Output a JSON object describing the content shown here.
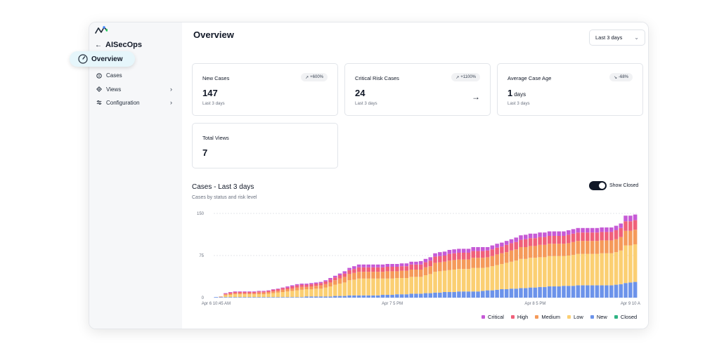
{
  "app": {
    "name": "AISecOps"
  },
  "sidebar": {
    "back_label": "AISecOps",
    "items": [
      {
        "label": "Overview",
        "icon": "gauge-icon",
        "active": true
      },
      {
        "label": "Cases",
        "icon": "info-icon"
      },
      {
        "label": "Views",
        "icon": "views-icon",
        "expandable": true
      },
      {
        "label": "Configuration",
        "icon": "sliders-icon",
        "expandable": true
      }
    ]
  },
  "header": {
    "title": "Overview",
    "range_select": {
      "value": "Last 3 days"
    }
  },
  "cards": [
    {
      "title": "New Cases",
      "badge": "+600%",
      "badge_icon": "trend-up-icon",
      "value": "147",
      "unit": "",
      "sub": "Last 3 days"
    },
    {
      "title": "Critical Risk Cases",
      "badge": "+1100%",
      "badge_icon": "trend-up-icon",
      "value": "24",
      "unit": "",
      "sub": "Last 3 days",
      "has_arrow": true
    },
    {
      "title": "Average Case Age",
      "badge": "-68%",
      "badge_icon": "trend-down-icon",
      "value": "1",
      "unit": "days",
      "sub": "Last 3 days"
    },
    {
      "title": "Total Views",
      "value": "7",
      "unit": "",
      "sub": ""
    }
  ],
  "chart_section": {
    "title": "Cases - Last 3 days",
    "subtitle": "Cases by status and risk level",
    "toggle_label": "Show Closed",
    "toggle_on": true
  },
  "colors": {
    "Critical": "#c65ad6",
    "High": "#f0607a",
    "Medium": "#f59a5a",
    "Low": "#fbcf72",
    "New": "#6c93ea",
    "Closed": "#2fb383",
    "accent": "#e6f6fb"
  },
  "chart_data": {
    "type": "bar",
    "stacked": true,
    "title": "Cases - Last 3 days",
    "subtitle": "Cases by status and risk level",
    "y_ticks": [
      0,
      75,
      150
    ],
    "ylim": [
      0,
      150
    ],
    "x_tick_labels": [
      "Apr 6 10:45 AM",
      "Apr 7 5 PM",
      "Apr 8 5 PM",
      "Apr 9 10 A"
    ],
    "x_tick_index": [
      0,
      37,
      67,
      87
    ],
    "legend": [
      "Critical",
      "High",
      "Medium",
      "Low",
      "New",
      "Closed"
    ],
    "totals": [
      1,
      2,
      8,
      10,
      11,
      11,
      11,
      11,
      11,
      12,
      12,
      13,
      15,
      16,
      18,
      20,
      22,
      24,
      25,
      25,
      26,
      27,
      28,
      31,
      35,
      39,
      43,
      47,
      53,
      56,
      59,
      59,
      59,
      59,
      59,
      59,
      60,
      60,
      60,
      61,
      61,
      64,
      64,
      65,
      69,
      72,
      79,
      81,
      82,
      85,
      86,
      87,
      87,
      87,
      90,
      90,
      90,
      90,
      93,
      96,
      98,
      101,
      104,
      107,
      111,
      112,
      114,
      114,
      116,
      116,
      118,
      118,
      118,
      118,
      120,
      122,
      124,
      124,
      124,
      124,
      124,
      125,
      125,
      125,
      128,
      132,
      146,
      146,
      148
    ],
    "series": [
      {
        "name": "New",
        "values": [
          1,
          1,
          1,
          1,
          1,
          1,
          1,
          1,
          1,
          1,
          1,
          1,
          1,
          1,
          1,
          1,
          1,
          1,
          1,
          2,
          2,
          2,
          2,
          2,
          2,
          3,
          3,
          3,
          4,
          4,
          4,
          4,
          4,
          4,
          4,
          5,
          5,
          5,
          6,
          6,
          6,
          7,
          7,
          7,
          8,
          8,
          9,
          9,
          10,
          10,
          10,
          11,
          11,
          11,
          11,
          11,
          12,
          13,
          13,
          14,
          15,
          15,
          16,
          16,
          17,
          17,
          18,
          18,
          19,
          19,
          20,
          20,
          20,
          21,
          21,
          21,
          22,
          22,
          22,
          22,
          22,
          22,
          22,
          22,
          23,
          24,
          26,
          27,
          28
        ]
      },
      {
        "name": "Low",
        "values": [
          0,
          0,
          3,
          4,
          5,
          5,
          5,
          5,
          5,
          5,
          5,
          6,
          7,
          8,
          9,
          10,
          11,
          12,
          13,
          13,
          13,
          14,
          14,
          16,
          18,
          20,
          22,
          24,
          27,
          28,
          30,
          30,
          30,
          30,
          30,
          29,
          29,
          29,
          29,
          29,
          29,
          30,
          30,
          30,
          32,
          34,
          37,
          38,
          38,
          39,
          40,
          40,
          40,
          40,
          42,
          42,
          41,
          41,
          43,
          44,
          45,
          47,
          48,
          50,
          52,
          52,
          53,
          53,
          53,
          53,
          54,
          54,
          54,
          53,
          54,
          55,
          56,
          56,
          56,
          56,
          56,
          57,
          57,
          57,
          58,
          60,
          67,
          66,
          67
        ]
      },
      {
        "name": "Medium",
        "values": [
          0,
          1,
          2,
          2,
          2,
          2,
          2,
          2,
          2,
          3,
          3,
          3,
          3,
          3,
          4,
          4,
          4,
          5,
          5,
          4,
          5,
          5,
          6,
          6,
          7,
          8,
          9,
          10,
          11,
          12,
          12,
          12,
          12,
          12,
          12,
          12,
          13,
          13,
          12,
          13,
          13,
          13,
          13,
          13,
          14,
          14,
          16,
          16,
          16,
          17,
          17,
          17,
          17,
          17,
          18,
          18,
          18,
          18,
          18,
          19,
          19,
          19,
          20,
          20,
          21,
          21,
          21,
          21,
          22,
          22,
          22,
          22,
          22,
          22,
          22,
          23,
          23,
          23,
          23,
          23,
          23,
          23,
          23,
          23,
          23,
          24,
          26,
          26,
          26
        ]
      },
      {
        "name": "High",
        "values": [
          0,
          0,
          1,
          2,
          2,
          2,
          2,
          2,
          2,
          2,
          2,
          2,
          3,
          3,
          3,
          3,
          4,
          4,
          4,
          4,
          4,
          4,
          4,
          5,
          5,
          5,
          6,
          6,
          7,
          7,
          8,
          8,
          8,
          8,
          8,
          8,
          8,
          8,
          8,
          8,
          8,
          9,
          9,
          9,
          9,
          10,
          11,
          11,
          11,
          12,
          12,
          12,
          12,
          12,
          12,
          12,
          12,
          12,
          12,
          12,
          12,
          13,
          13,
          13,
          13,
          14,
          14,
          14,
          14,
          14,
          14,
          14,
          14,
          14,
          15,
          15,
          15,
          15,
          15,
          15,
          15,
          15,
          15,
          15,
          16,
          16,
          17,
          17,
          17
        ]
      },
      {
        "name": "Critical",
        "values": [
          0,
          0,
          1,
          1,
          1,
          1,
          1,
          1,
          1,
          1,
          1,
          1,
          1,
          1,
          1,
          2,
          2,
          2,
          2,
          2,
          2,
          2,
          2,
          2,
          3,
          3,
          3,
          4,
          4,
          5,
          5,
          5,
          5,
          5,
          5,
          5,
          5,
          5,
          5,
          5,
          5,
          5,
          5,
          6,
          6,
          6,
          6,
          7,
          7,
          7,
          7,
          7,
          7,
          7,
          7,
          7,
          7,
          6,
          7,
          7,
          7,
          7,
          7,
          8,
          8,
          8,
          8,
          8,
          8,
          8,
          8,
          8,
          8,
          8,
          8,
          8,
          8,
          8,
          8,
          8,
          8,
          8,
          8,
          8,
          8,
          8,
          10,
          10,
          10
        ]
      },
      {
        "name": "Closed",
        "values": [
          0,
          0,
          0,
          0,
          0,
          0,
          0,
          0,
          0,
          0,
          0,
          0,
          0,
          0,
          0,
          0,
          0,
          0,
          0,
          0,
          0,
          0,
          0,
          0,
          0,
          0,
          0,
          0,
          0,
          0,
          0,
          0,
          0,
          0,
          0,
          0,
          0,
          0,
          0,
          0,
          0,
          0,
          0,
          0,
          0,
          0,
          0,
          0,
          0,
          0,
          0,
          0,
          0,
          0,
          0,
          0,
          0,
          0,
          0,
          0,
          0,
          0,
          0,
          0,
          0,
          0,
          0,
          0,
          0,
          0,
          0,
          0,
          0,
          0,
          0,
          0,
          0,
          0,
          0,
          0,
          0,
          0,
          0,
          0,
          0,
          0,
          0,
          0,
          0
        ]
      }
    ]
  }
}
